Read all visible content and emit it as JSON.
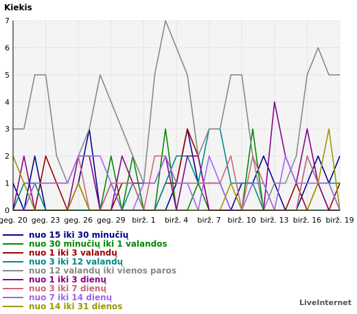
{
  "chart_data": {
    "type": "line",
    "ylabel": "Kiekis",
    "ylim": [
      0,
      7
    ],
    "yticks": [
      0,
      1,
      2,
      3,
      4,
      5,
      6,
      7
    ],
    "grid": true,
    "legend_position": "bottom",
    "x_tick_labels": [
      "geg. 20",
      "geg. 23",
      "geg. 26",
      "geg. 29",
      "birž. 1",
      "birž. 4",
      "birž. 7",
      "birž. 10",
      "birž. 13",
      "birž. 16",
      "birž. 19"
    ],
    "series": [
      {
        "name": "nuo 15 iki 30 minučių",
        "color": "#00008b",
        "values": [
          1,
          0,
          2,
          0,
          0,
          0,
          1,
          3,
          0,
          1,
          0,
          0,
          0,
          0,
          0,
          1,
          3,
          1,
          1,
          1,
          0,
          1,
          1,
          2,
          1,
          0,
          0,
          1,
          2,
          1,
          2
        ]
      },
      {
        "name": "nuo 30 minučių iki 1 valandos",
        "color": "#008800",
        "values": [
          0,
          0,
          0,
          0,
          0,
          0,
          0,
          0,
          0,
          2,
          0,
          2,
          0,
          0,
          3,
          0,
          0,
          1,
          0,
          0,
          0,
          0,
          3,
          0,
          0,
          0,
          0,
          0,
          0,
          0,
          0
        ]
      },
      {
        "name": "nuo 1 iki 3 valandų",
        "color": "#990000",
        "values": [
          0,
          0,
          0,
          2,
          1,
          0,
          1,
          0,
          0,
          0,
          1,
          1,
          0,
          0,
          1,
          1,
          3,
          2,
          0,
          0,
          0,
          0,
          0,
          0,
          0,
          0,
          1,
          0,
          1,
          0,
          1
        ]
      },
      {
        "name": "nuo 3 iki 12 valandų",
        "color": "#008888",
        "values": [
          0,
          1,
          1,
          0,
          0,
          0,
          0,
          0,
          0,
          0,
          0,
          1,
          0,
          0,
          1,
          2,
          2,
          1,
          3,
          3,
          1,
          1,
          1,
          0,
          0,
          0,
          0,
          2,
          1,
          1,
          1
        ]
      },
      {
        "name": "nuo 12 valandų iki vienos paros",
        "color": "#888888",
        "values": [
          3,
          3,
          5,
          5,
          2,
          1,
          2,
          3,
          5,
          4,
          3,
          2,
          1,
          5,
          7,
          6,
          5,
          2,
          3,
          3,
          5,
          5,
          2,
          0,
          1,
          1,
          2,
          5,
          6,
          5,
          5
        ]
      },
      {
        "name": "nuo 1 iki 3 dienų",
        "color": "#880088",
        "values": [
          0,
          2,
          0,
          0,
          0,
          0,
          2,
          2,
          0,
          0,
          2,
          1,
          1,
          1,
          2,
          0,
          2,
          2,
          0,
          0,
          0,
          0,
          0,
          0,
          4,
          2,
          1,
          3,
          1,
          0,
          0
        ]
      },
      {
        "name": "nuo 3 iki 7 dienų",
        "color": "#cc6677",
        "values": [
          0,
          0,
          1,
          1,
          1,
          1,
          2,
          0,
          0,
          1,
          1,
          1,
          0,
          2,
          2,
          1,
          1,
          1,
          1,
          1,
          2,
          0,
          2,
          1,
          0,
          0,
          0,
          2,
          1,
          1,
          0
        ]
      },
      {
        "name": "nuo 7 iki 14 dienų",
        "color": "#9966ee",
        "values": [
          0,
          0,
          1,
          1,
          1,
          1,
          2,
          2,
          2,
          1,
          0,
          0,
          1,
          1,
          2,
          1,
          1,
          0,
          2,
          1,
          0,
          0,
          1,
          1,
          0,
          2,
          1,
          1,
          1,
          1,
          0
        ]
      },
      {
        "name": "nuo 14 iki 31 dienos",
        "color": "#999900",
        "values": [
          2,
          1,
          0,
          0,
          0,
          0,
          1,
          0,
          0,
          0,
          0,
          0,
          0,
          0,
          0,
          0,
          0,
          0,
          0,
          0,
          1,
          0,
          0,
          0,
          0,
          0,
          0,
          0,
          1,
          3,
          0
        ]
      }
    ]
  },
  "brand": "LiveInternet"
}
